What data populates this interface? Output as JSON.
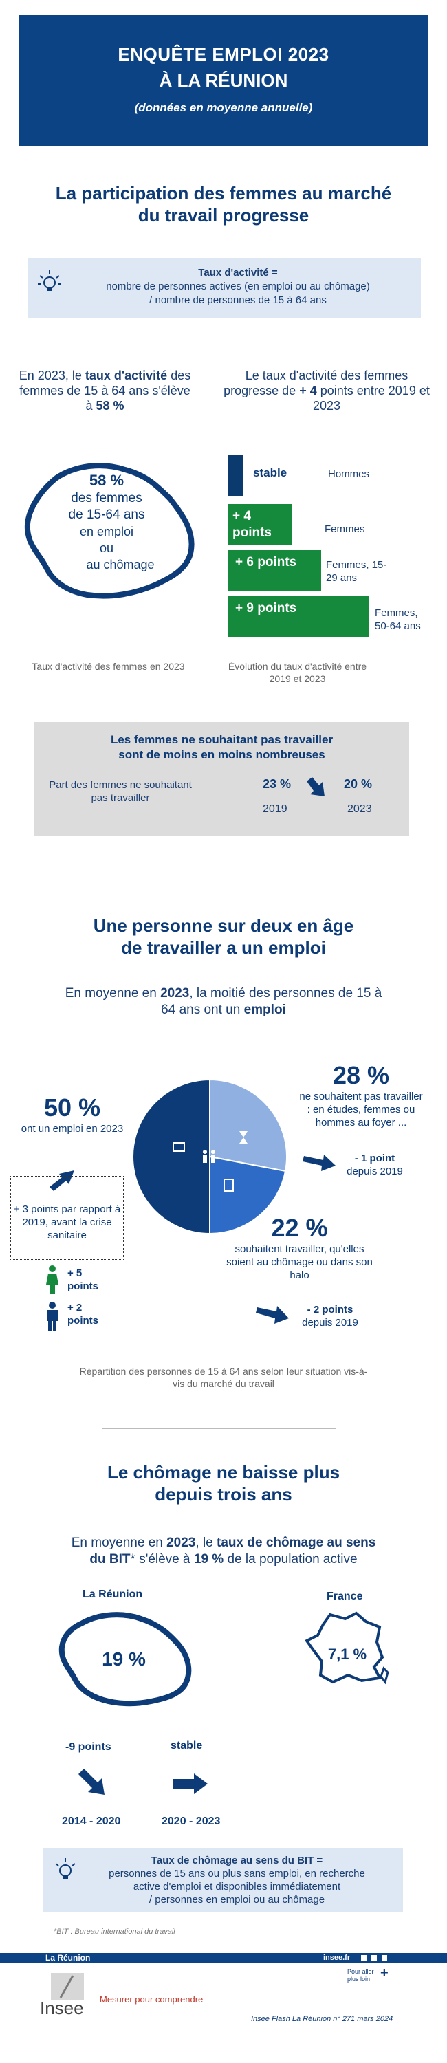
{
  "header": {
    "line1": "ENQUÊTE EMPLOI 2023",
    "line2": "À LA RÉUNION",
    "subtitle": "(données en moyenne annuelle)"
  },
  "section1": {
    "title_line1": "La participation des femmes au marché",
    "title_line2": "du travail progresse",
    "definition_title": "Taux d'activité =",
    "definition_line1": "nombre de personnes actives (en emploi ou au chômage)",
    "definition_line2": "/ nombre de personnes de 15 à 64 ans",
    "left_text": [
      "En 2023, le ",
      "taux d'activité",
      " des femmes de 15 à 64 ans s'élève à ",
      "58 %"
    ],
    "right_text": [
      "Le taux d'activité des femmes progresse de ",
      "+ 4",
      " points entre 2019 et 2023"
    ],
    "map_value": "58 %",
    "map_line1": "des femmes",
    "map_line2": "de 15-64 ans",
    "map_line3": "en emploi",
    "map_line4": "ou",
    "map_line5": "au chômage",
    "bars": [
      {
        "value": "stable",
        "label": "Hommes",
        "color": "#0b3a6e"
      },
      {
        "value": "+ 4 points",
        "label": "Femmes",
        "color": "#158a3c"
      },
      {
        "value": "+ 6 points",
        "label": "Femmes, 15-29 ans",
        "color": "#158a3c"
      },
      {
        "value": "+ 9 points",
        "label": "Femmes, 50-64 ans",
        "color": "#158a3c"
      }
    ],
    "caption_left": "Taux d'activité des femmes en 2023",
    "caption_right": "Évolution du taux d'activité entre 2019 et 2023",
    "grey_box": {
      "title_line1": "Les femmes ne souhaitant pas travailler",
      "title_line2": "sont de moins en moins nombreuses",
      "label": "Part des femmes ne souhaitant pas travailler",
      "val_2019": "23 %",
      "year_2019": "2019",
      "val_2023": "20 %",
      "year_2023": "2023"
    }
  },
  "section2": {
    "title_line1": "Une personne sur deux en âge",
    "title_line2": "de travailler a un emploi",
    "intro": [
      "En moyenne en ",
      "2023",
      ", la moitié des personnes de 15 à 64 ans ont un ",
      "emploi"
    ],
    "pie": [
      {
        "name": "emploi",
        "value": 50,
        "color": "#0d3b77"
      },
      {
        "name": "ne souhaitent pas travailler",
        "value": 28,
        "color": "#8fb0e0"
      },
      {
        "name": "souhaitent travailler",
        "value": 22,
        "color": "#2e6bc6"
      }
    ],
    "emploi_value": "50 %",
    "emploi_text": "ont un emploi en 2023",
    "emploi_box": "+ 3 points par rapport à 2019, avant la crise sanitaire",
    "woman_points": "+ 5 points",
    "man_points": "+ 2 points",
    "inactive_value": "28 %",
    "inactive_text": "ne souhaitent pas travailler : en études, femmes ou hommes au foyer ...",
    "inactive_change": "- 1 point",
    "inactive_since": "depuis 2019",
    "halo_value": "22 %",
    "halo_text": "souhaitent travailler, qu'elles soient au chômage ou dans son halo",
    "halo_change": "- 2 points",
    "halo_since": "depuis 2019",
    "caption": "Répartition des personnes de 15 à 64 ans selon leur situation vis-à-vis du marché du travail"
  },
  "section3": {
    "title_line1": "Le chômage ne baisse plus",
    "title_line2": "depuis trois ans",
    "intro": [
      "En moyenne en ",
      "2023",
      ", le ",
      "taux de chômage au sens du BIT",
      "* s'élève à ",
      "19 %",
      " de la population active"
    ],
    "reunion_label": "La Réunion",
    "reunion_value": "19 %",
    "france_label": "France",
    "france_value": "7,1 %",
    "change1": "-9 points",
    "period1": "2014 - 2020",
    "change2": "stable",
    "period2": "2020 - 2023",
    "definition_title": "Taux de chômage au sens du BIT =",
    "definition_line1": "personnes de 15 ans ou plus sans emploi, en recherche",
    "definition_line2": "active d'emploi et disponibles immédiatement",
    "definition_line3": "/ personnes en emploi ou au chômage",
    "footnote": "*BIT : Bureau international du travail"
  },
  "footer": {
    "region": "La Réunion",
    "site": "insee.fr",
    "more": "Pour aller plus loin",
    "logo": "Insee",
    "tagline": "Mesurer pour comprendre",
    "reference": "Insee Flash La Réunion n° 271 mars 2024"
  },
  "colors": {
    "navy": "#0b4385",
    "green": "#158a3c",
    "light_blue_box": "#dde8f4"
  }
}
